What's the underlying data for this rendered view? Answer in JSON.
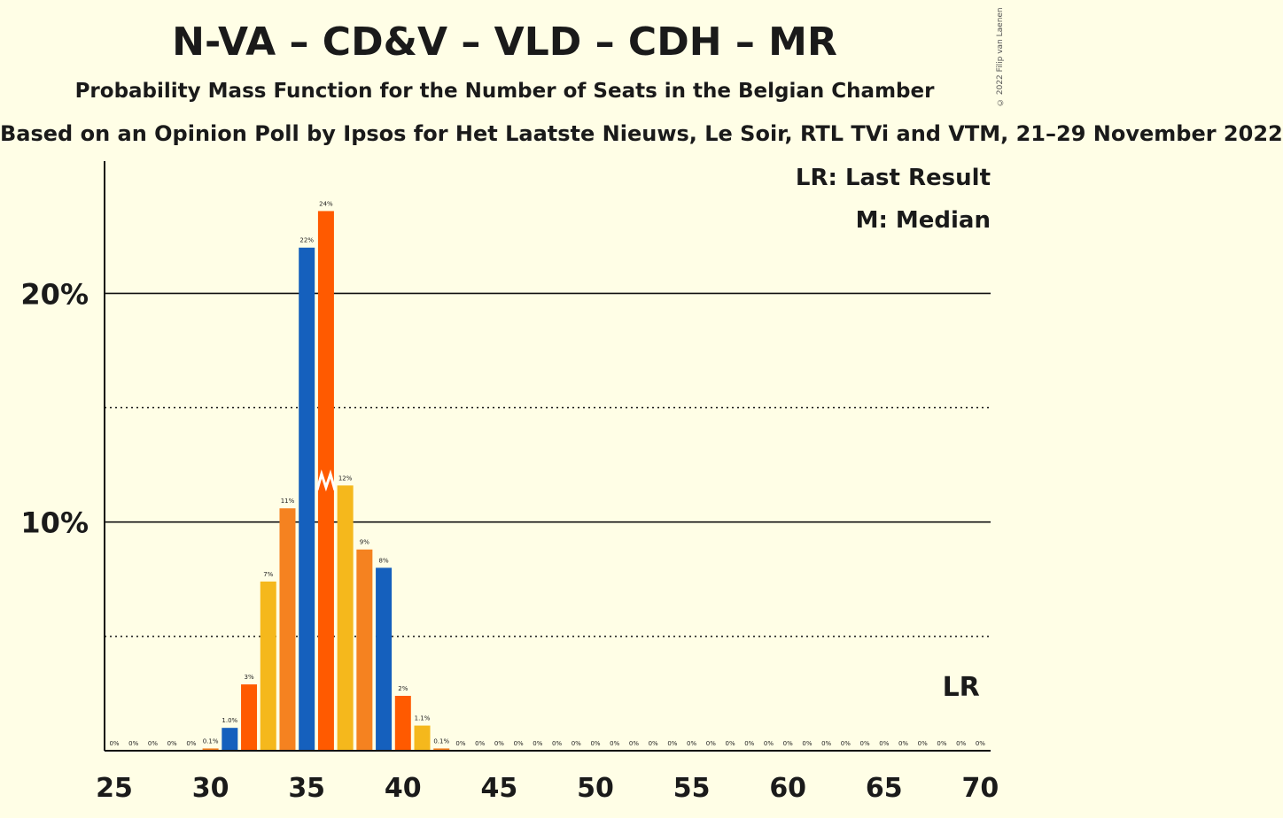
{
  "title": "N-VA – CD&V – VLD – CDH – MR",
  "subtitle": "Probability Mass Function for the Number of Seats in the Belgian Chamber",
  "source": "Based on an Opinion Poll by Ipsos for Het Laatste Nieuws, Le Soir, RTL TVi and VTM, 21–29 November 2022",
  "copyright": "© 2022 Filip van Laenen",
  "legend": {
    "last_result": "LR: Last Result",
    "median": "M: Median"
  },
  "chart_data": {
    "type": "bar",
    "x": [
      25,
      26,
      27,
      28,
      29,
      30,
      31,
      32,
      33,
      34,
      35,
      36,
      37,
      38,
      39,
      40,
      41,
      42,
      43,
      44,
      45,
      46,
      47,
      48,
      49,
      50,
      51,
      52,
      53,
      54,
      55,
      56,
      57,
      58,
      59,
      60,
      61,
      62,
      63,
      64,
      65,
      66,
      67,
      68,
      69,
      70
    ],
    "values": [
      0,
      0,
      0,
      0,
      0,
      0.1,
      1.0,
      2.9,
      7.4,
      10.6,
      22.0,
      23.6,
      11.6,
      8.8,
      8.0,
      2.4,
      1.1,
      0.1,
      0,
      0,
      0,
      0,
      0,
      0,
      0,
      0,
      0,
      0,
      0,
      0,
      0,
      0,
      0,
      0,
      0,
      0,
      0,
      0,
      0,
      0,
      0,
      0,
      0,
      0,
      0,
      0
    ],
    "labels": [
      "0%",
      "0%",
      "0%",
      "0%",
      "0%",
      "0.1%",
      "1.0%",
      "3%",
      "7%",
      "11%",
      "22%",
      "24%",
      "12%",
      "9%",
      "8%",
      "2%",
      "1.1%",
      "0.1%",
      "0%",
      "0%",
      "0%",
      "0%",
      "0%",
      "0%",
      "0%",
      "0%",
      "0%",
      "0%",
      "0%",
      "0%",
      "0%",
      "0%",
      "0%",
      "0%",
      "0%",
      "0%",
      "0%",
      "0%",
      "0%",
      "0%",
      "0%",
      "0%",
      "0%",
      "0%",
      "0%",
      "0%"
    ],
    "colors": [
      "#F5B81C",
      "#F58220",
      "#1560BD",
      "#FF5A00"
    ],
    "xticks": [
      25,
      30,
      35,
      40,
      45,
      50,
      55,
      60,
      65,
      70
    ],
    "yticks": [
      {
        "value": 10,
        "label": "10%"
      },
      {
        "value": 20,
        "label": "20%"
      }
    ],
    "dotted_gridlines": [
      5,
      15
    ],
    "ylim": [
      0,
      25.7
    ],
    "median": 36,
    "median_label": "M",
    "last_result": 69,
    "last_result_label": "LR"
  }
}
